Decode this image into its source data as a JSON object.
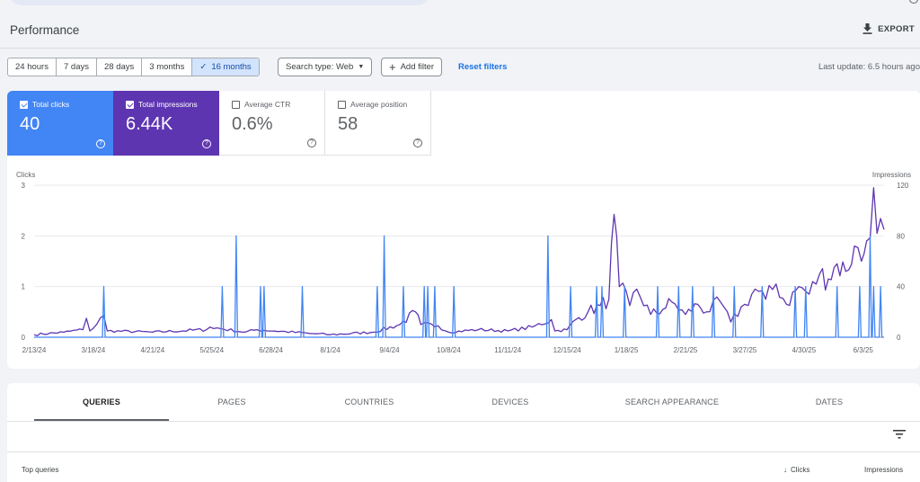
{
  "header": {
    "title": "Performance",
    "export_label": "EXPORT"
  },
  "filters": {
    "date_ranges": [
      "24 hours",
      "7 days",
      "28 days",
      "3 months",
      "16 months"
    ],
    "selected_range": "16 months",
    "search_type": "Search type: Web",
    "add_filter": "Add filter",
    "reset": "Reset filters",
    "last_update": "Last update: 6.5 hours ago"
  },
  "metrics": {
    "clicks": {
      "label": "Total clicks",
      "value": "40",
      "checked": true
    },
    "impressions": {
      "label": "Total impressions",
      "value": "6.44K",
      "checked": true
    },
    "ctr": {
      "label": "Average CTR",
      "value": "0.6%",
      "checked": false
    },
    "position": {
      "label": "Average position",
      "value": "58",
      "checked": false
    }
  },
  "colors": {
    "clicks": "#4285f4",
    "impressions": "#5e35b1",
    "link": "#1a73e8"
  },
  "chart_data": {
    "type": "line",
    "ylabel_left": "Clicks",
    "ylabel_right": "Impressions",
    "yticks_left": [
      0,
      1,
      2,
      3
    ],
    "yticks_right": [
      0,
      40,
      80,
      120
    ],
    "ylim_left": [
      0,
      3
    ],
    "ylim_right": [
      0,
      120
    ],
    "x_ticks": [
      "2/13/24",
      "3/18/24",
      "4/21/24",
      "5/25/24",
      "6/28/24",
      "8/1/24",
      "9/4/24",
      "10/8/24",
      "11/11/24",
      "12/15/24",
      "1/18/25",
      "2/21/25",
      "3/27/25",
      "4/30/25",
      "6/3/25"
    ],
    "x_start": "2/13/24",
    "x_end": "6/15/25",
    "series": [
      {
        "name": "Clicks",
        "color": "#4285f4",
        "axis": "left",
        "spikes": [
          {
            "date": "3/24/24",
            "value": 1
          },
          {
            "date": "5/31/24",
            "value": 1
          },
          {
            "date": "6/8/24",
            "value": 2
          },
          {
            "date": "6/22/24",
            "value": 1
          },
          {
            "date": "6/24/24",
            "value": 1
          },
          {
            "date": "7/16/24",
            "value": 1
          },
          {
            "date": "8/28/24",
            "value": 1
          },
          {
            "date": "9/1/24",
            "value": 2
          },
          {
            "date": "9/12/24",
            "value": 1
          },
          {
            "date": "9/24/24",
            "value": 1
          },
          {
            "date": "9/26/24",
            "value": 1
          },
          {
            "date": "9/30/24",
            "value": 1
          },
          {
            "date": "10/11/24",
            "value": 1
          },
          {
            "date": "12/4/24",
            "value": 2
          },
          {
            "date": "12/17/24",
            "value": 1
          },
          {
            "date": "1/1/25",
            "value": 1
          },
          {
            "date": "1/4/25",
            "value": 1
          },
          {
            "date": "1/17/25",
            "value": 1
          },
          {
            "date": "2/5/25",
            "value": 1
          },
          {
            "date": "2/17/25",
            "value": 1
          },
          {
            "date": "2/25/25",
            "value": 1
          },
          {
            "date": "3/9/25",
            "value": 1
          },
          {
            "date": "3/21/25",
            "value": 1
          },
          {
            "date": "4/6/25",
            "value": 1
          },
          {
            "date": "4/25/25",
            "value": 1
          },
          {
            "date": "5/1/25",
            "value": 1
          },
          {
            "date": "5/19/25",
            "value": 1
          },
          {
            "date": "6/1/25",
            "value": 1
          },
          {
            "date": "6/7/25",
            "value": 2
          },
          {
            "date": "6/9/25",
            "value": 1
          },
          {
            "date": "6/13/25",
            "value": 1
          }
        ]
      },
      {
        "name": "Impressions",
        "color": "#5e35b1",
        "axis": "right",
        "points": [
          [
            "2/13/24",
            2
          ],
          [
            "3/1/24",
            4
          ],
          [
            "3/12/24",
            6
          ],
          [
            "3/14/24",
            15
          ],
          [
            "3/16/24",
            5
          ],
          [
            "3/24/24",
            17
          ],
          [
            "3/26/24",
            5
          ],
          [
            "4/21/24",
            4
          ],
          [
            "5/22/24",
            6
          ],
          [
            "5/24/24",
            8
          ],
          [
            "6/13/24",
            4
          ],
          [
            "6/20/24",
            6
          ],
          [
            "7/20/24",
            3
          ],
          [
            "8/1/24",
            2
          ],
          [
            "8/26/24",
            4
          ],
          [
            "9/10/24",
            10
          ],
          [
            "9/19/24",
            20
          ],
          [
            "9/22/24",
            10
          ],
          [
            "10/2/24",
            9
          ],
          [
            "10/8/24",
            4
          ],
          [
            "10/25/24",
            6
          ],
          [
            "11/11/24",
            5
          ],
          [
            "11/25/24",
            8
          ],
          [
            "12/6/24",
            14
          ],
          [
            "12/8/24",
            5
          ],
          [
            "12/15/24",
            6
          ],
          [
            "12/20/24",
            14
          ],
          [
            "12/27/24",
            20
          ],
          [
            "1/3/25",
            25
          ],
          [
            "1/8/25",
            30
          ],
          [
            "1/11/25",
            97
          ],
          [
            "1/14/25",
            40
          ],
          [
            "1/20/25",
            25
          ],
          [
            "1/24/25",
            38
          ],
          [
            "2/1/25",
            18
          ],
          [
            "2/8/25",
            22
          ],
          [
            "2/13/25",
            28
          ],
          [
            "2/21/25",
            18
          ],
          [
            "2/28/25",
            26
          ],
          [
            "3/5/25",
            20
          ],
          [
            "3/13/25",
            28
          ],
          [
            "3/19/25",
            12
          ],
          [
            "3/27/25",
            26
          ],
          [
            "4/2/25",
            38
          ],
          [
            "4/8/25",
            30
          ],
          [
            "4/14/25",
            42
          ],
          [
            "4/20/25",
            26
          ],
          [
            "4/27/25",
            40
          ],
          [
            "5/3/25",
            34
          ],
          [
            "5/9/25",
            50
          ],
          [
            "5/14/25",
            46
          ],
          [
            "5/19/25",
            58
          ],
          [
            "5/24/25",
            52
          ],
          [
            "5/29/25",
            72
          ],
          [
            "6/2/25",
            60
          ],
          [
            "6/5/25",
            76
          ],
          [
            "6/9/25",
            118
          ],
          [
            "6/11/25",
            82
          ],
          [
            "6/15/25",
            85
          ]
        ]
      }
    ]
  },
  "tabs": [
    "QUERIES",
    "PAGES",
    "COUNTRIES",
    "DEVICES",
    "SEARCH APPEARANCE",
    "DATES"
  ],
  "table": {
    "top_queries": "Top queries",
    "clicks": "Clicks",
    "impressions": "Impressions"
  }
}
